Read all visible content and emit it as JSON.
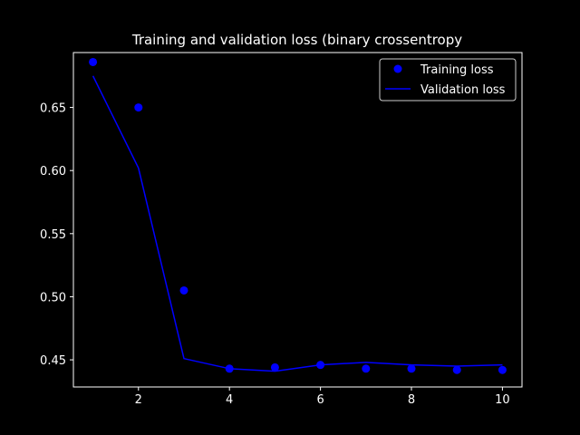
{
  "chart_data": {
    "type": "line",
    "title": "Training and validation loss (binary crossentropy",
    "xlabel": "",
    "ylabel": "",
    "xlim": [
      0.57,
      10.43
    ],
    "ylim": [
      0.4285,
      0.6935
    ],
    "x_ticks": [
      2,
      4,
      6,
      8,
      10
    ],
    "y_ticks": [
      0.45,
      0.5,
      0.55,
      0.6,
      0.65
    ],
    "x_tick_labels": [
      "2",
      "4",
      "6",
      "8",
      "10"
    ],
    "y_tick_labels": [
      "0.45",
      "0.50",
      "0.55",
      "0.60",
      "0.65"
    ],
    "grid": false,
    "legend_position": "top-right",
    "background_color": "#000000",
    "foreground_color": "#ffffff",
    "x": [
      1,
      2,
      3,
      4,
      5,
      6,
      7,
      8,
      9,
      10
    ],
    "series": [
      {
        "name": "Training loss",
        "style": "markers",
        "color": "#0000ff",
        "values": [
          0.686,
          0.65,
          0.505,
          0.443,
          0.444,
          0.446,
          0.443,
          0.443,
          0.442,
          0.442
        ]
      },
      {
        "name": "Validation loss",
        "style": "line",
        "color": "#0000ff",
        "values": [
          0.675,
          0.602,
          0.451,
          0.443,
          0.441,
          0.446,
          0.448,
          0.446,
          0.445,
          0.446
        ]
      }
    ]
  }
}
